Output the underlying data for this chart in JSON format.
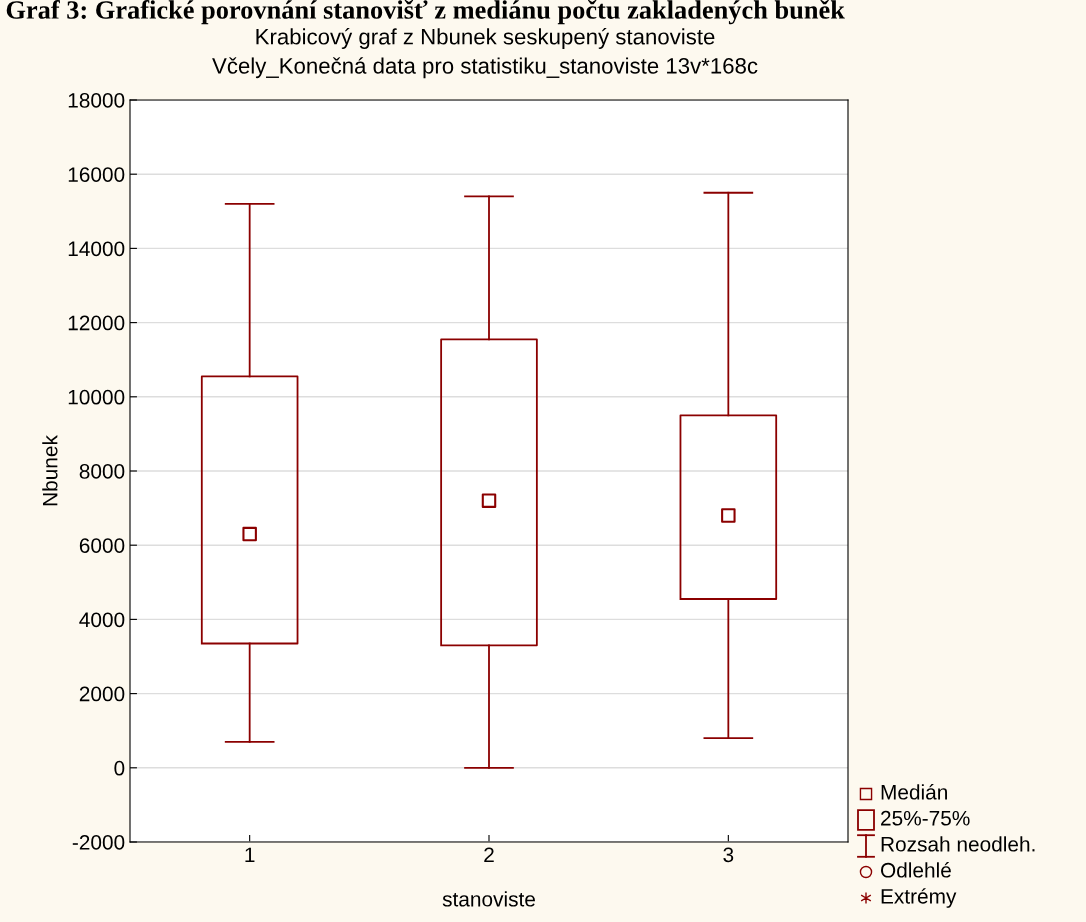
{
  "chart_data": {
    "type": "box",
    "title": "Graf 3: Grafické porovnání stanovišť z mediánu počtu zakladených buněk",
    "subtitle": "Krabicový graf z Nbunek seskupený stanoviste\nVčely_Konečná data pro statistiku_stanoviste 13v*168c",
    "xlabel": "stanoviste",
    "ylabel": "Nbunek",
    "categories": [
      "1",
      "2",
      "3"
    ],
    "color": "#8b0000",
    "boxes": [
      {
        "low": 700,
        "q1": 3350,
        "median": 6300,
        "q3": 10550,
        "high": 15200
      },
      {
        "low": 0,
        "q1": 3300,
        "median": 7200,
        "q3": 11550,
        "high": 15400
      },
      {
        "low": 800,
        "q1": 4550,
        "median": 6800,
        "q3": 9500,
        "high": 15500
      }
    ],
    "ylim": [
      -2000,
      18000
    ],
    "yticks": [
      -2000,
      0,
      2000,
      4000,
      6000,
      8000,
      10000,
      12000,
      14000,
      16000,
      18000
    ],
    "grid": "y",
    "annotations": [
      "Medián",
      "25%-75%",
      "Rozsah neodleh.",
      "Odlehlé",
      "Extrémy"
    ]
  }
}
